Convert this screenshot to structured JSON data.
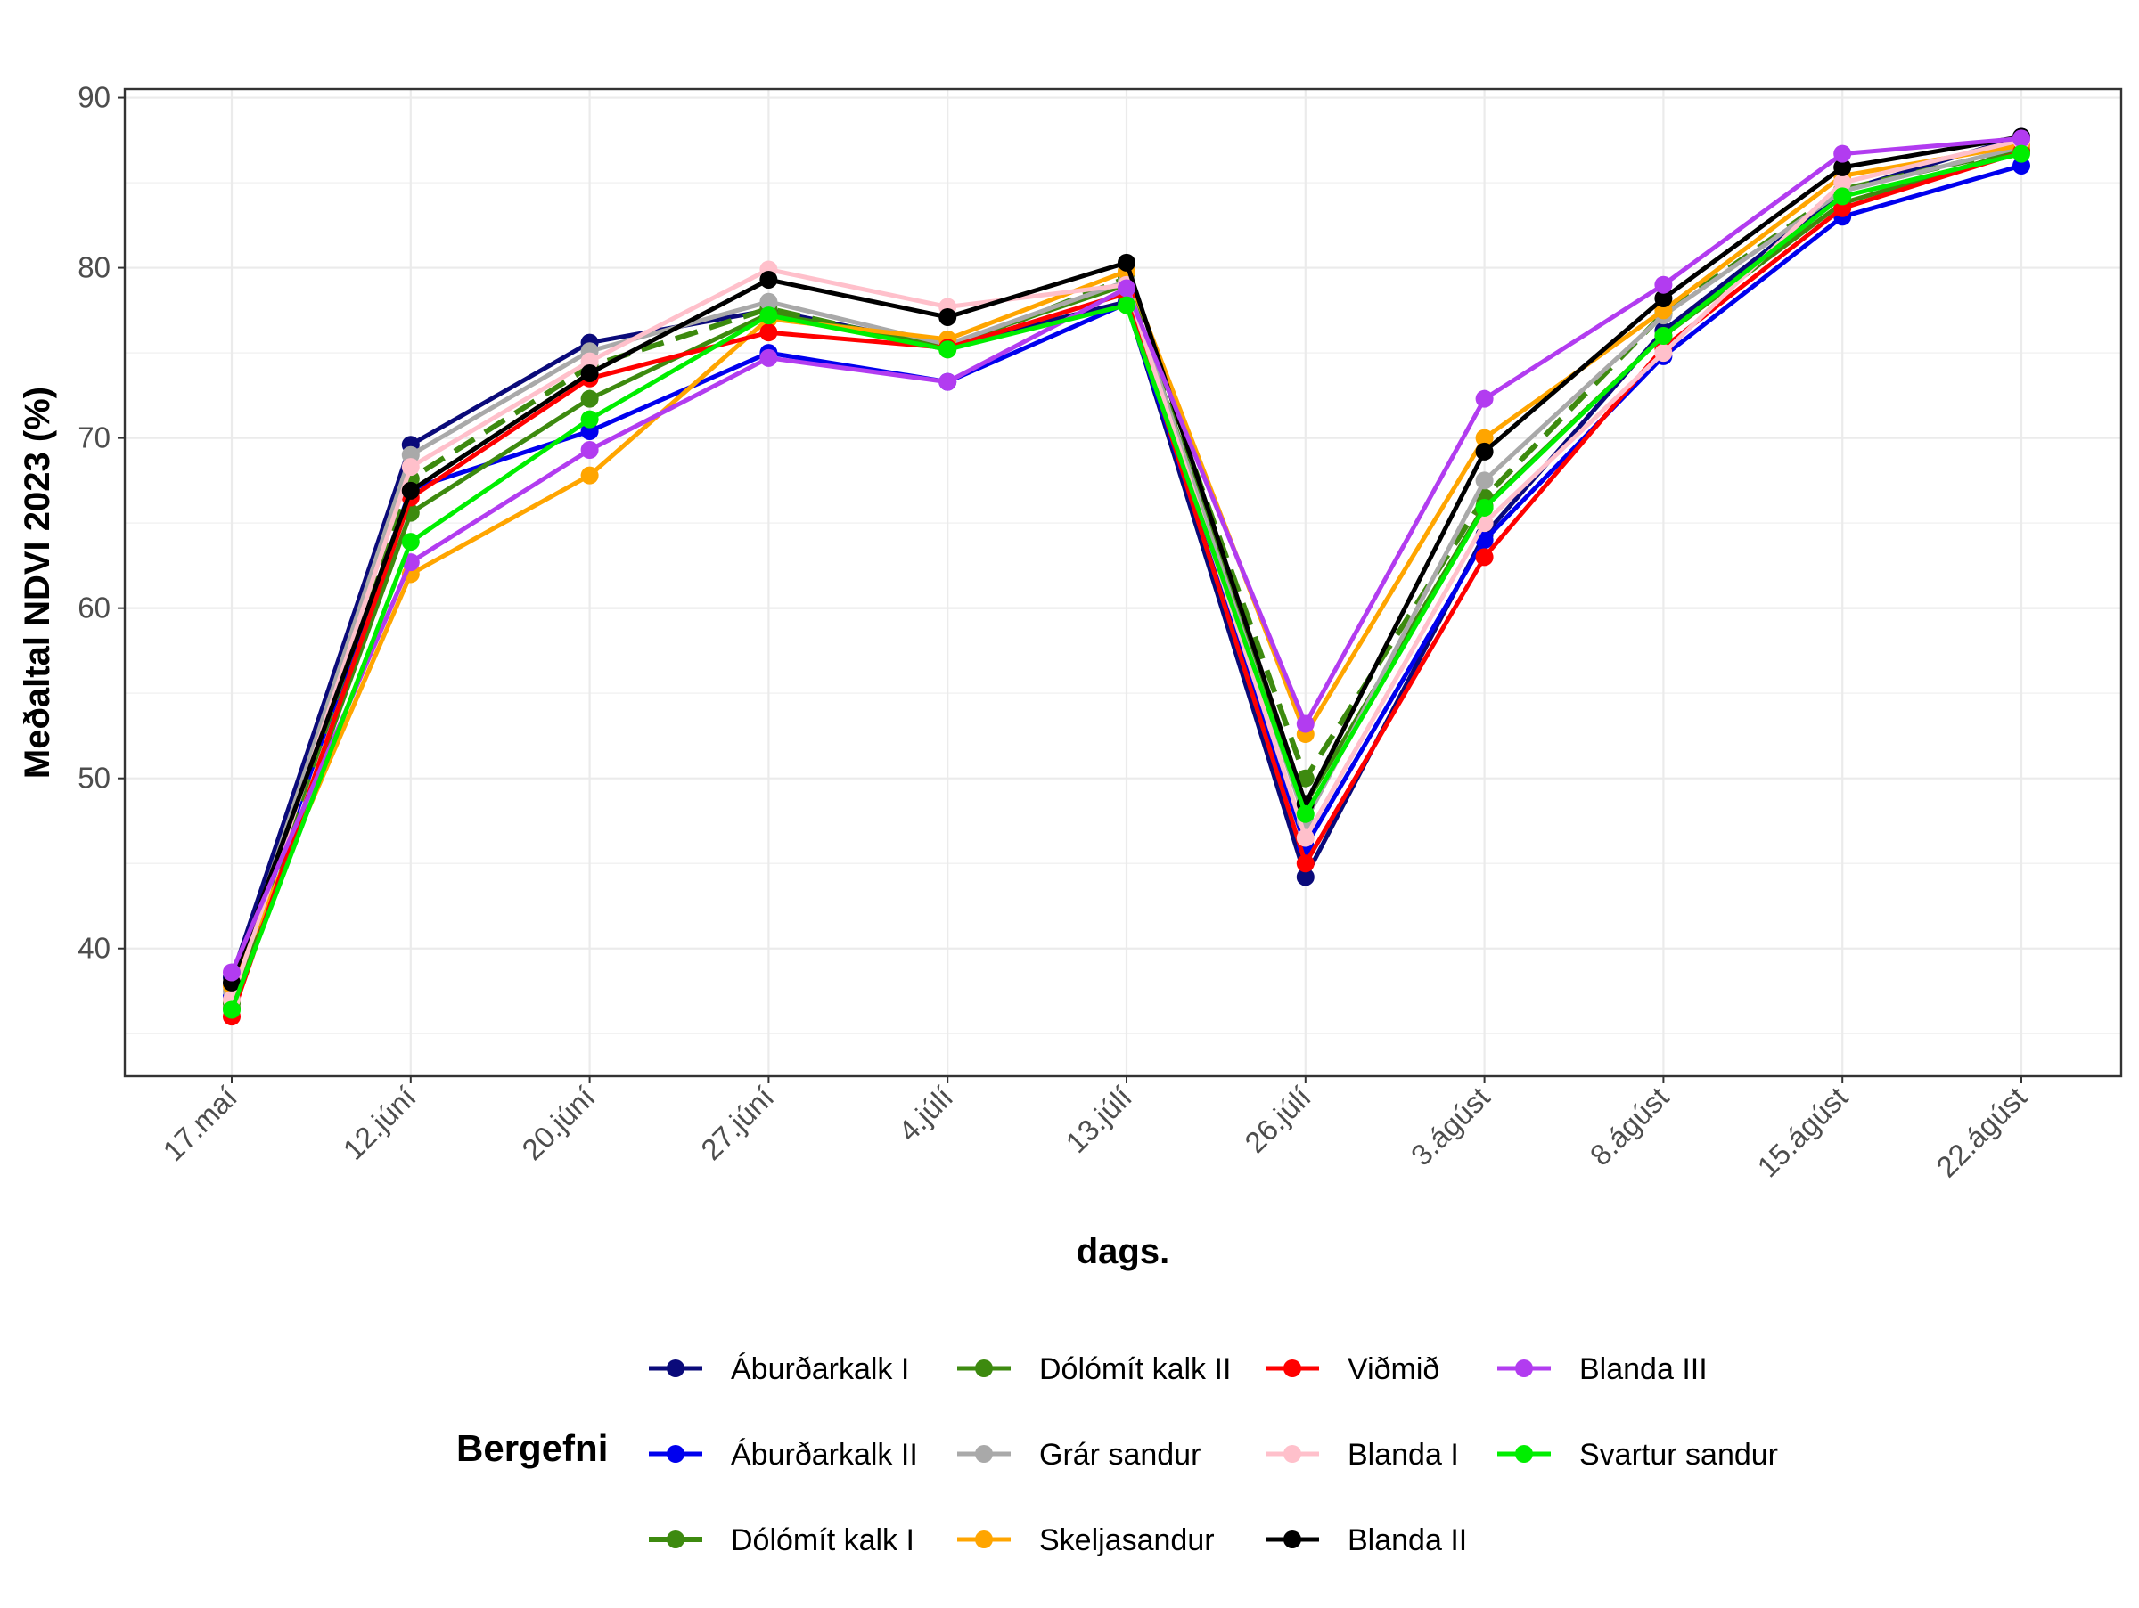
{
  "chart_data": {
    "type": "line",
    "xlabel": "dags.",
    "ylabel": "Meðaltal NDVI 2023 (%)",
    "ylim": [
      32.5,
      90.5
    ],
    "yticks": [
      40,
      50,
      60,
      70,
      80,
      90
    ],
    "grid": true,
    "legend_title": "Bergefni",
    "legend_position": "bottom",
    "categories": [
      "17.maí",
      "12.júní",
      "20.júní",
      "27.júní",
      "4.júlí",
      "13.júlí",
      "26.júlí",
      "3.ágúst",
      "8.ágúst",
      "15.ágúst",
      "22.ágúst"
    ],
    "series": [
      {
        "name": "Áburðarkalk I",
        "color": "#0a0a7a",
        "dash": false,
        "values": [
          38.3,
          69.6,
          75.6,
          77.5,
          75.4,
          78.0,
          44.2,
          64.3,
          76.3,
          84.5,
          87.7
        ]
      },
      {
        "name": "Áburðarkalk II",
        "color": "#0000ee",
        "dash": false,
        "values": [
          37.2,
          67.0,
          70.4,
          75.0,
          73.3,
          77.9,
          46.0,
          64.0,
          74.8,
          83.0,
          86.0
        ]
      },
      {
        "name": "Dólómít kalk I",
        "color": "#3d8a0f",
        "dash": true,
        "values": [
          36.8,
          67.6,
          74.2,
          77.6,
          75.2,
          79.4,
          50.0,
          66.5,
          77.3,
          84.6,
          87.0
        ]
      },
      {
        "name": "Dólómít kalk II",
        "color": "#3d8a0f",
        "dash": false,
        "values": [
          36.5,
          65.6,
          72.3,
          77.3,
          75.5,
          79.0,
          48.5,
          66.0,
          76.0,
          83.8,
          86.9
        ]
      },
      {
        "name": "Grár sandur",
        "color": "#a9a9a9",
        "dash": false,
        "values": [
          37.5,
          69.0,
          75.1,
          78.0,
          75.5,
          79.2,
          47.5,
          67.5,
          77.2,
          84.5,
          87.1
        ]
      },
      {
        "name": "Skeljasandur",
        "color": "#ffa500",
        "dash": false,
        "values": [
          37.8,
          62.0,
          67.8,
          77.0,
          75.8,
          79.8,
          52.6,
          70.0,
          77.5,
          85.4,
          87.2
        ]
      },
      {
        "name": "Viðmið",
        "color": "#ff0000",
        "dash": false,
        "values": [
          36.0,
          66.5,
          73.5,
          76.2,
          75.3,
          78.5,
          45.0,
          63.0,
          75.3,
          83.5,
          86.8
        ]
      },
      {
        "name": "Blanda I",
        "color": "#ffc0cb",
        "dash": false,
        "values": [
          37.0,
          68.3,
          74.5,
          79.9,
          77.7,
          79.0,
          46.5,
          65.0,
          75.0,
          85.0,
          87.5
        ]
      },
      {
        "name": "Blanda II",
        "color": "#000000",
        "dash": false,
        "values": [
          38.0,
          66.9,
          73.8,
          79.3,
          77.1,
          80.3,
          48.5,
          69.2,
          78.2,
          85.9,
          87.7
        ]
      },
      {
        "name": "Blanda III",
        "color": "#b23cf0",
        "dash": false,
        "values": [
          38.6,
          62.7,
          69.3,
          74.7,
          73.3,
          78.8,
          53.2,
          72.3,
          79.0,
          86.7,
          87.6
        ]
      },
      {
        "name": "Svartur sandur",
        "color": "#00ee00",
        "dash": false,
        "values": [
          36.4,
          63.9,
          71.1,
          77.2,
          75.2,
          77.8,
          47.9,
          65.9,
          76.0,
          84.2,
          86.7
        ]
      }
    ]
  }
}
